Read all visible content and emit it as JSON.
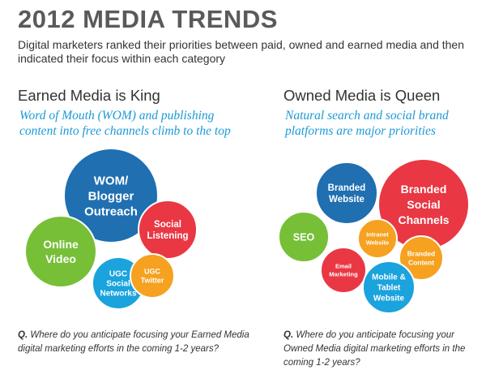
{
  "header": {
    "title": "2012 MEDIA TRENDS",
    "subtitle": "Digital marketers ranked their priorities between paid, owned and earned media and then indicated their focus within each category"
  },
  "colors": {
    "blue_dark": "#1f6fb1",
    "blue_light": "#1aa3dc",
    "green": "#77bf37",
    "red": "#e93744",
    "orange": "#f6a11f",
    "accent_text": "#1c9ad6"
  },
  "sections": [
    {
      "heading": "Earned Media is King",
      "description_line1": "Word of Mouth (WOM) and publishing",
      "description_line2": "content into free channels climb to the top",
      "question_prefix": "Q.",
      "question_line1": "Where do you anticipate focusing your Earned Media",
      "question_line2": "digital marketing efforts in the coming 1-2 years?",
      "bubbles": [
        {
          "name": "wom-blogger-outreach",
          "lines": [
            "WOM/",
            "Blogger",
            "Outreach"
          ],
          "color": "#1f6fb1"
        },
        {
          "name": "online-video",
          "lines": [
            "Online",
            "Video"
          ],
          "color": "#77bf37"
        },
        {
          "name": "social-listening",
          "lines": [
            "Social",
            "Listening"
          ],
          "color": "#e93744"
        },
        {
          "name": "ugc-social-networks",
          "lines": [
            "UGC",
            "Social",
            "Networks"
          ],
          "color": "#1aa3dc"
        },
        {
          "name": "ugc-twitter",
          "lines": [
            "UGC",
            "Twitter"
          ],
          "color": "#f6a11f"
        }
      ]
    },
    {
      "heading": "Owned Media is Queen",
      "description_line1": "Natural search and social brand",
      "description_line2": "platforms are major priorities",
      "question_prefix": "Q.",
      "question_line1": "Where do you anticipate focusing your",
      "question_line2": "Owned Media digital marketing efforts in the",
      "question_line3": "coming 1-2 years?",
      "bubbles": [
        {
          "name": "branded-website",
          "lines": [
            "Branded",
            "Website"
          ],
          "color": "#1f6fb1"
        },
        {
          "name": "branded-social-channels",
          "lines": [
            "Branded",
            "Social",
            "Channels"
          ],
          "color": "#e93744"
        },
        {
          "name": "seo",
          "lines": [
            "SEO"
          ],
          "color": "#77bf37"
        },
        {
          "name": "intranet-website",
          "lines": [
            "Intranet",
            "Website"
          ],
          "color": "#f6a11f"
        },
        {
          "name": "branded-content",
          "lines": [
            "Branded",
            "Content"
          ],
          "color": "#f6a11f"
        },
        {
          "name": "email-marketing",
          "lines": [
            "Email",
            "Marketing"
          ],
          "color": "#e93744"
        },
        {
          "name": "mobile-tablet-website",
          "lines": [
            "Mobile &",
            "Tablet",
            "Website"
          ],
          "color": "#1aa3dc"
        }
      ]
    }
  ]
}
